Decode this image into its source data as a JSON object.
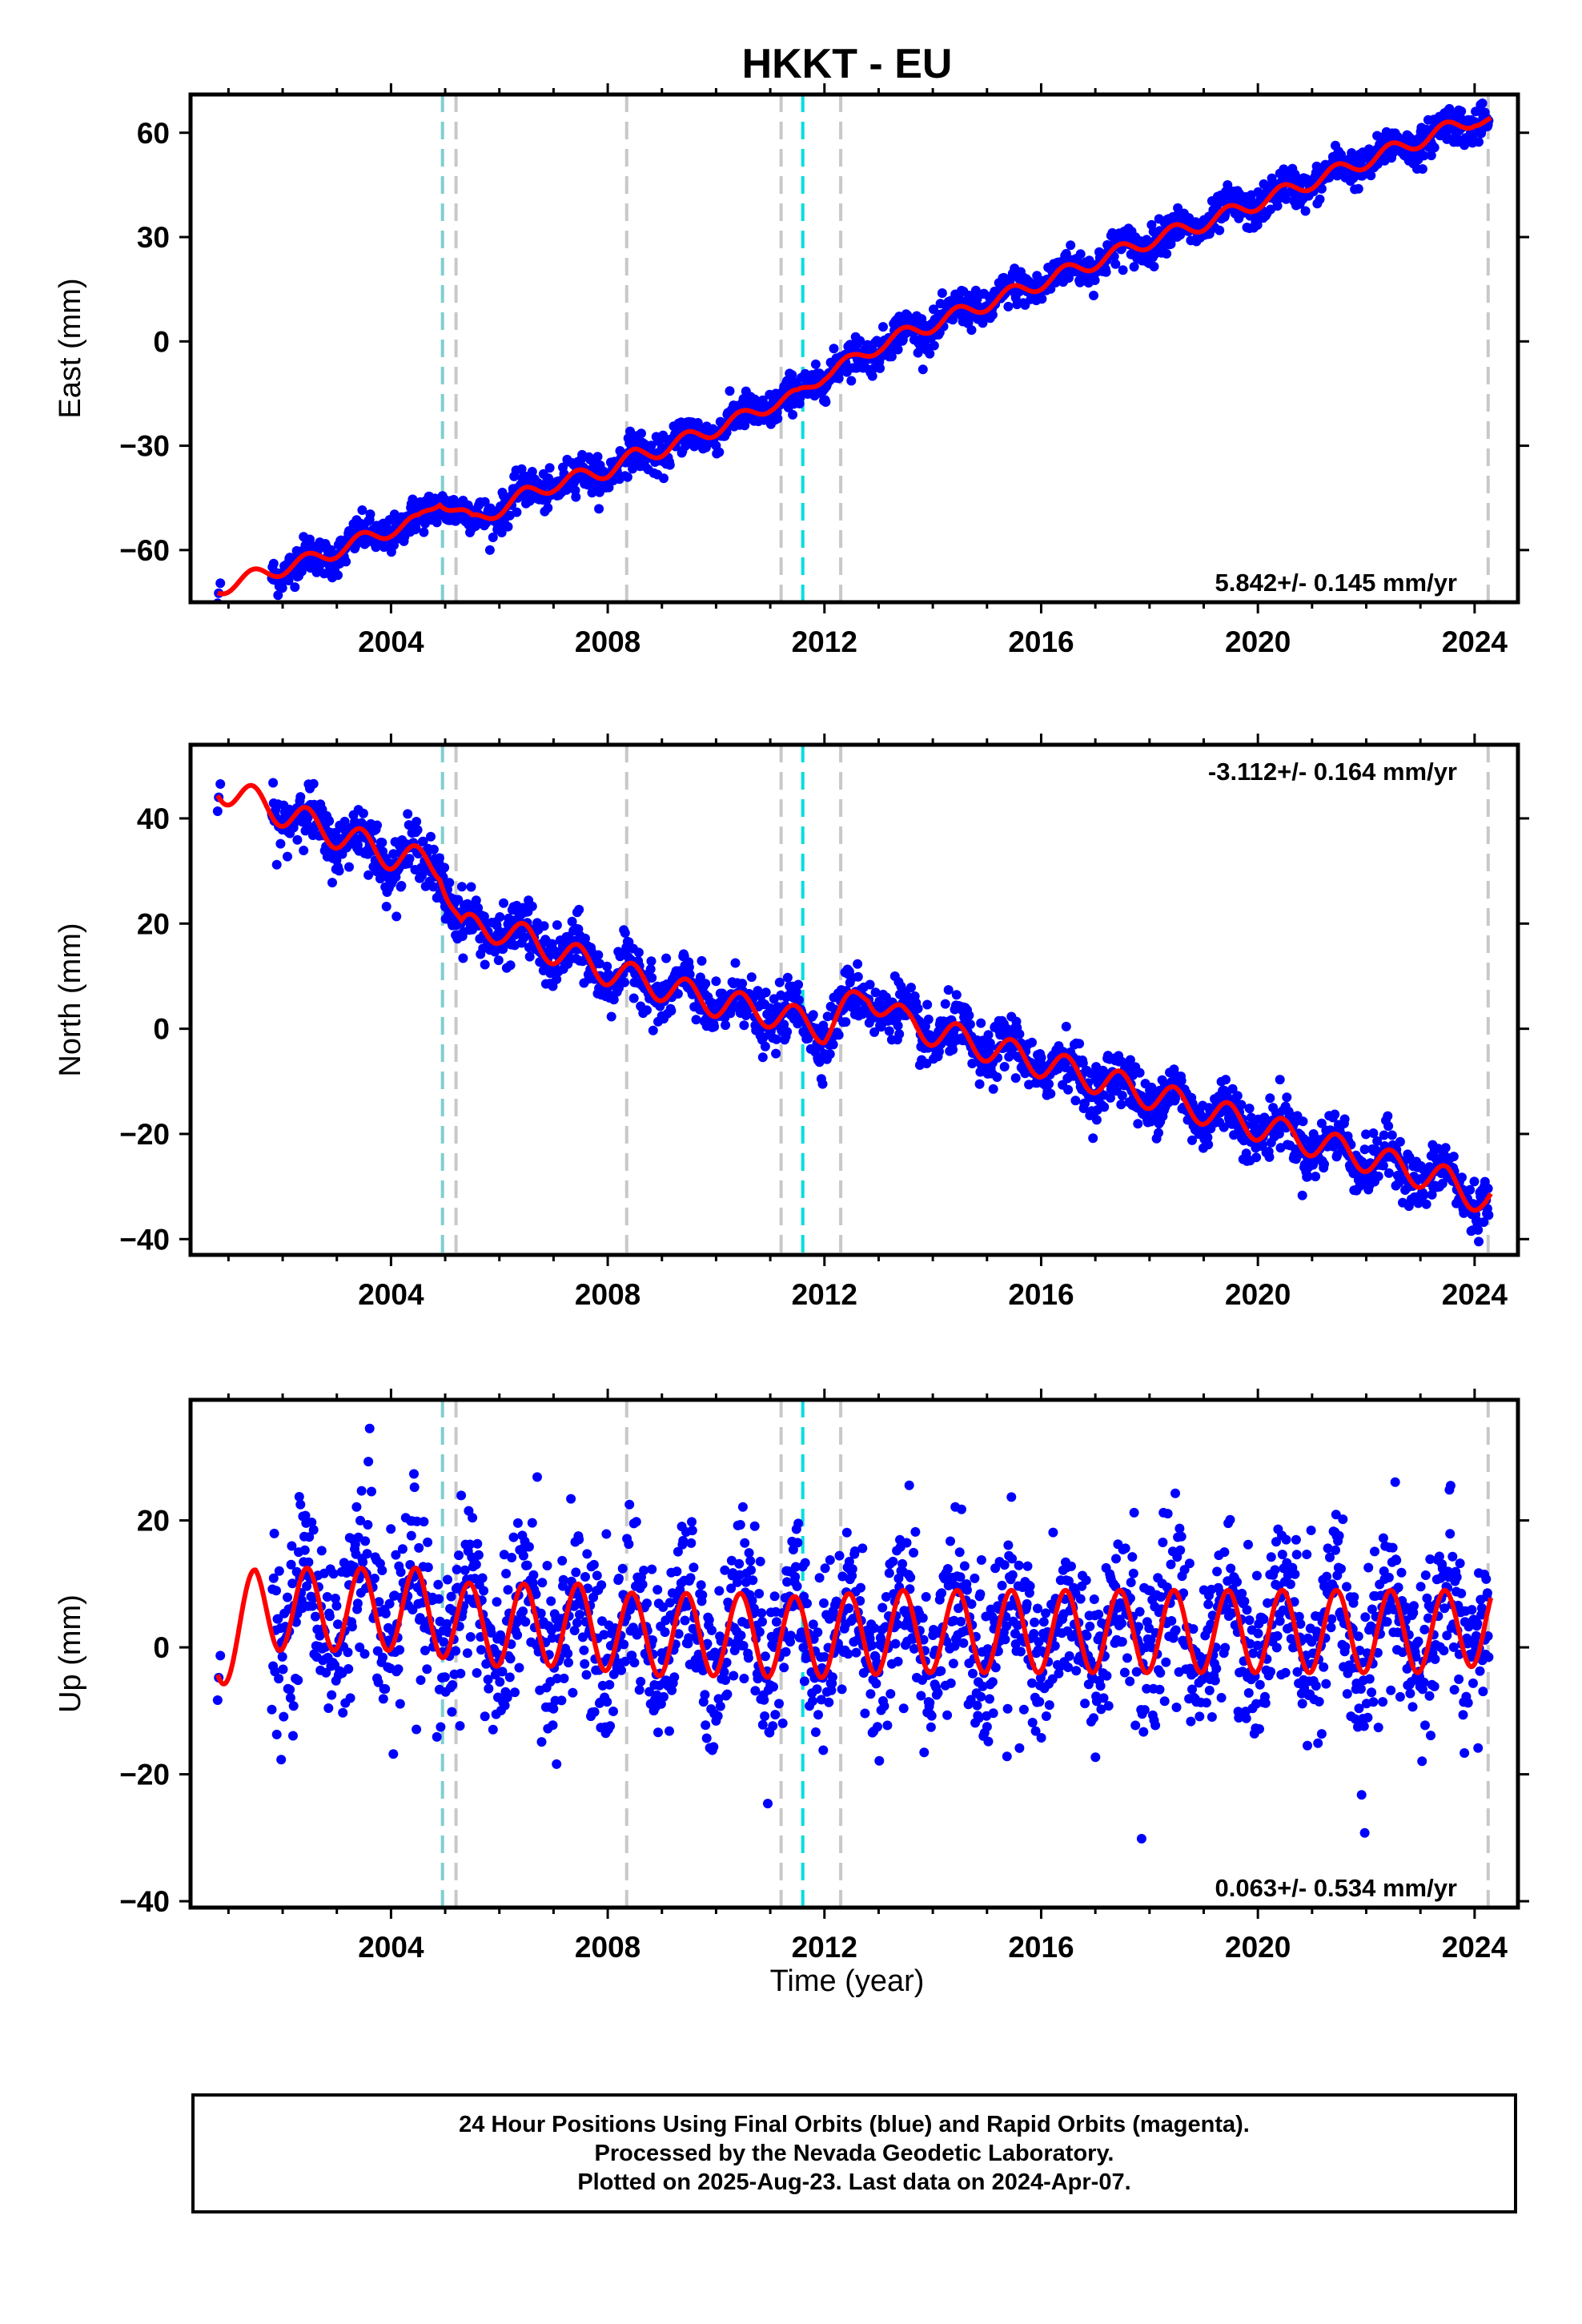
{
  "title": "HKKT - EU",
  "xlabel": "Time (year)",
  "colors": {
    "data": "#0000ff",
    "model": "#ff0000",
    "gray_line": "#c8c8c8",
    "cyan_line": "#00dede",
    "teal_line": "#7ecfcf"
  },
  "events": {
    "gray": [
      2005.2,
      2008.35,
      2011.2,
      2012.3,
      2024.25
    ],
    "cyan": [
      2011.6
    ],
    "teal": [
      2004.95
    ]
  },
  "chart_data": [
    {
      "type": "scatter",
      "ylabel": "East (mm)",
      "rate": "5.842+/- 0.145 mm/yr",
      "xlim": [
        2000.3,
        2024.8
      ],
      "ylim": [
        -75,
        71
      ],
      "xticks": [
        "2004",
        "2008",
        "2012",
        "2016",
        "2020",
        "2024"
      ],
      "xtick_values": [
        2004,
        2008,
        2012,
        2016,
        2020,
        2024
      ],
      "yticks": [
        "-60",
        "-30",
        "0",
        "30",
        "60"
      ],
      "ytick_values": [
        -60,
        -30,
        0,
        30,
        60
      ],
      "series": [
        {
          "x": [
            2000.8,
            2001.8,
            2002.5,
            2003.0,
            2003.5,
            2004.0,
            2004.5,
            2004.9,
            2005.5,
            2006.0,
            2006.5,
            2007.0,
            2007.5,
            2008.0,
            2008.5,
            2009.0,
            2009.5,
            2010.0,
            2010.5,
            2011.0,
            2011.5,
            2012.0,
            2012.5,
            2013.0,
            2014.0,
            2015.0,
            2016.0,
            2017.0,
            2018.0,
            2019.0,
            2020.0,
            2021.0,
            2022.0,
            2023.0,
            2024.0,
            2024.3
          ],
          "y": [
            -71,
            -66,
            -63,
            -60,
            -57,
            -54,
            -52,
            -45,
            -52,
            -48,
            -44,
            -41,
            -39,
            -37,
            -33,
            -31,
            -28,
            -25,
            -22,
            -18,
            -16,
            -9,
            -6,
            -1,
            5,
            11,
            17,
            23,
            29,
            34,
            40,
            46,
            52,
            58,
            64,
            63
          ]
        }
      ]
    },
    {
      "type": "scatter",
      "ylabel": "North (mm)",
      "rate": "-3.112+/- 0.164 mm/yr",
      "xlim": [
        2000.3,
        2024.8
      ],
      "ylim": [
        -43,
        54
      ],
      "xticks": [
        "2004",
        "2008",
        "2012",
        "2016",
        "2020",
        "2024"
      ],
      "xtick_values": [
        2004,
        2008,
        2012,
        2016,
        2020,
        2024
      ],
      "yticks": [
        "-40",
        "-20",
        "0",
        "20",
        "40"
      ],
      "ytick_values": [
        -40,
        -20,
        0,
        20,
        40
      ],
      "series": [
        {
          "x": [
            2000.8,
            2001.8,
            2002.5,
            2003.0,
            2003.5,
            2004.0,
            2004.9,
            2005.3,
            2006.0,
            2007.0,
            2008.0,
            2009.0,
            2010.0,
            2011.0,
            2012.0,
            2012.8,
            2013.5,
            2014.5,
            2015.5,
            2016.5,
            2017.5,
            2018.5,
            2019.5,
            2020.5,
            2021.5,
            2022.5,
            2023.5,
            2024.2
          ],
          "y": [
            46,
            42,
            39,
            37,
            35,
            33,
            31,
            19,
            19,
            15,
            11,
            8,
            5,
            3,
            0,
            7,
            1,
            -2,
            -5,
            -8,
            -11,
            -14,
            -17,
            -20,
            -23,
            -26,
            -29,
            -33
          ]
        }
      ]
    },
    {
      "type": "scatter",
      "ylabel": "Up (mm)",
      "rate": "0.063+/- 0.534 mm/yr",
      "xlim": [
        2000.3,
        2024.8
      ],
      "ylim": [
        -41,
        39
      ],
      "xticks": [
        "2004",
        "2008",
        "2012",
        "2016",
        "2020",
        "2024"
      ],
      "xtick_values": [
        2004,
        2008,
        2012,
        2016,
        2020,
        2024
      ],
      "yticks": [
        "-40",
        "-20",
        "0",
        "20"
      ],
      "ytick_values": [
        -40,
        -20,
        0,
        20
      ],
      "series": [
        {
          "x": [
            2000.8,
            2001.5,
            2002.5,
            2003.5,
            2004.5,
            2005.5,
            2006.5,
            2007.5,
            2008.5,
            2009.5,
            2010.5,
            2011.5,
            2012.5,
            2013.5,
            2014.5,
            2015.5,
            2016.5,
            2017.5,
            2018.5,
            2019.5,
            2020.5,
            2021.5,
            2022.5,
            2023.5,
            2024.2
          ],
          "y": [
            0,
            13,
            13,
            13,
            13,
            8,
            8,
            8,
            5,
            5,
            5,
            4,
            5,
            6,
            6,
            6,
            6,
            6,
            6,
            6,
            6,
            6,
            6,
            6,
            9
          ]
        }
      ]
    }
  ],
  "footer": {
    "line1": "24 Hour Positions Using Final Orbits (blue) and Rapid Orbits (magenta).",
    "line2": "Processed by the Nevada Geodetic Laboratory.",
    "line3": "Plotted on 2025-Aug-23. Last data on 2024-Apr-07."
  }
}
